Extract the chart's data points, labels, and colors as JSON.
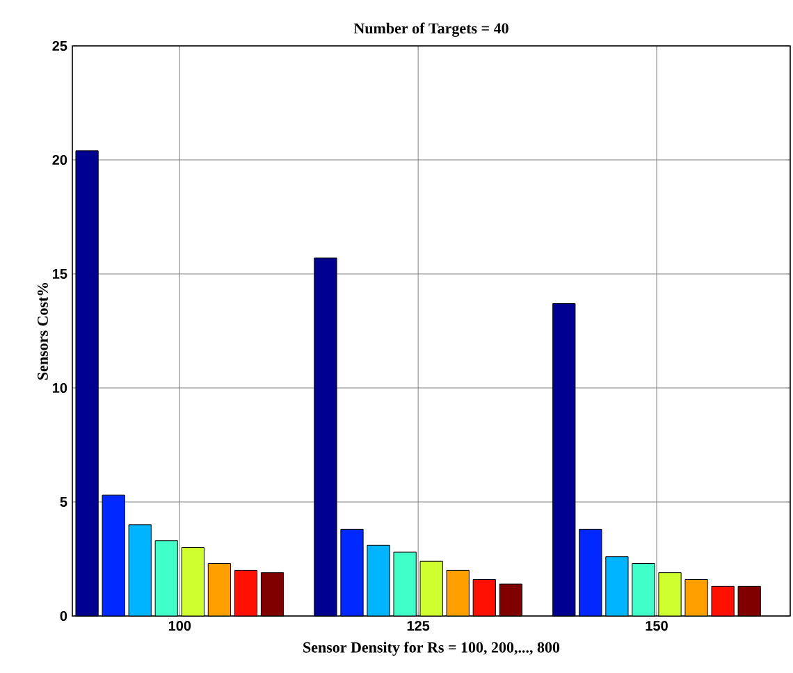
{
  "chart_data": {
    "type": "bar",
    "title": "Number of Targets = 40",
    "xlabel": "Sensor Density for Rs = 100, 200,..., 800",
    "ylabel": "Sensors Cost%",
    "categories": [
      "100",
      "125",
      "150"
    ],
    "series": [
      {
        "color": "#000090",
        "values": [
          20.4,
          15.7,
          13.7
        ]
      },
      {
        "color": "#0028ff",
        "values": [
          5.3,
          3.8,
          3.8
        ]
      },
      {
        "color": "#00b4ff",
        "values": [
          4.0,
          3.1,
          2.6
        ]
      },
      {
        "color": "#40ffc8",
        "values": [
          3.3,
          2.8,
          2.3
        ]
      },
      {
        "color": "#d0ff30",
        "values": [
          3.0,
          2.4,
          1.9
        ]
      },
      {
        "color": "#ffa000",
        "values": [
          2.3,
          2.0,
          1.6
        ]
      },
      {
        "color": "#ff1000",
        "values": [
          2.0,
          1.6,
          1.3
        ]
      },
      {
        "color": "#800000",
        "values": [
          1.9,
          1.4,
          1.3
        ]
      }
    ],
    "ylim": [
      0,
      25
    ],
    "yticks": [
      0,
      5,
      10,
      15,
      20,
      25
    ],
    "grid": true
  }
}
